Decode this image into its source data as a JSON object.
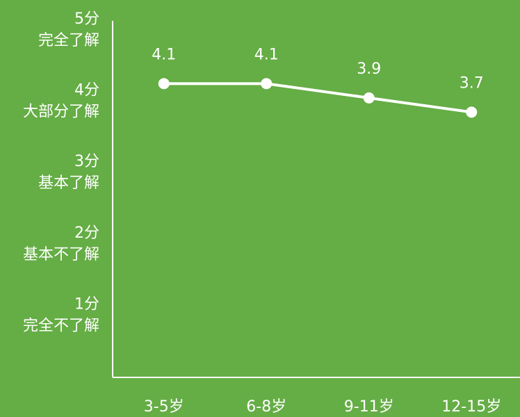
{
  "chart_data": {
    "type": "line",
    "categories": [
      "3-5岁",
      "6-8岁",
      "9-11岁",
      "12-15岁"
    ],
    "values": [
      4.1,
      4.1,
      3.9,
      3.7
    ],
    "color": "#ffffff",
    "ylim": [
      0,
      5
    ],
    "yticks": [
      {
        "value": 1,
        "label": "1分",
        "sublabel": "完全不了解"
      },
      {
        "value": 2,
        "label": "2分",
        "sublabel": "基本不了解"
      },
      {
        "value": 3,
        "label": "3分",
        "sublabel": "基本了解"
      },
      {
        "value": 4,
        "label": "4分",
        "sublabel": "大部分了解"
      },
      {
        "value": 5,
        "label": "5分",
        "sublabel": "完全了解"
      }
    ],
    "grid": false
  }
}
